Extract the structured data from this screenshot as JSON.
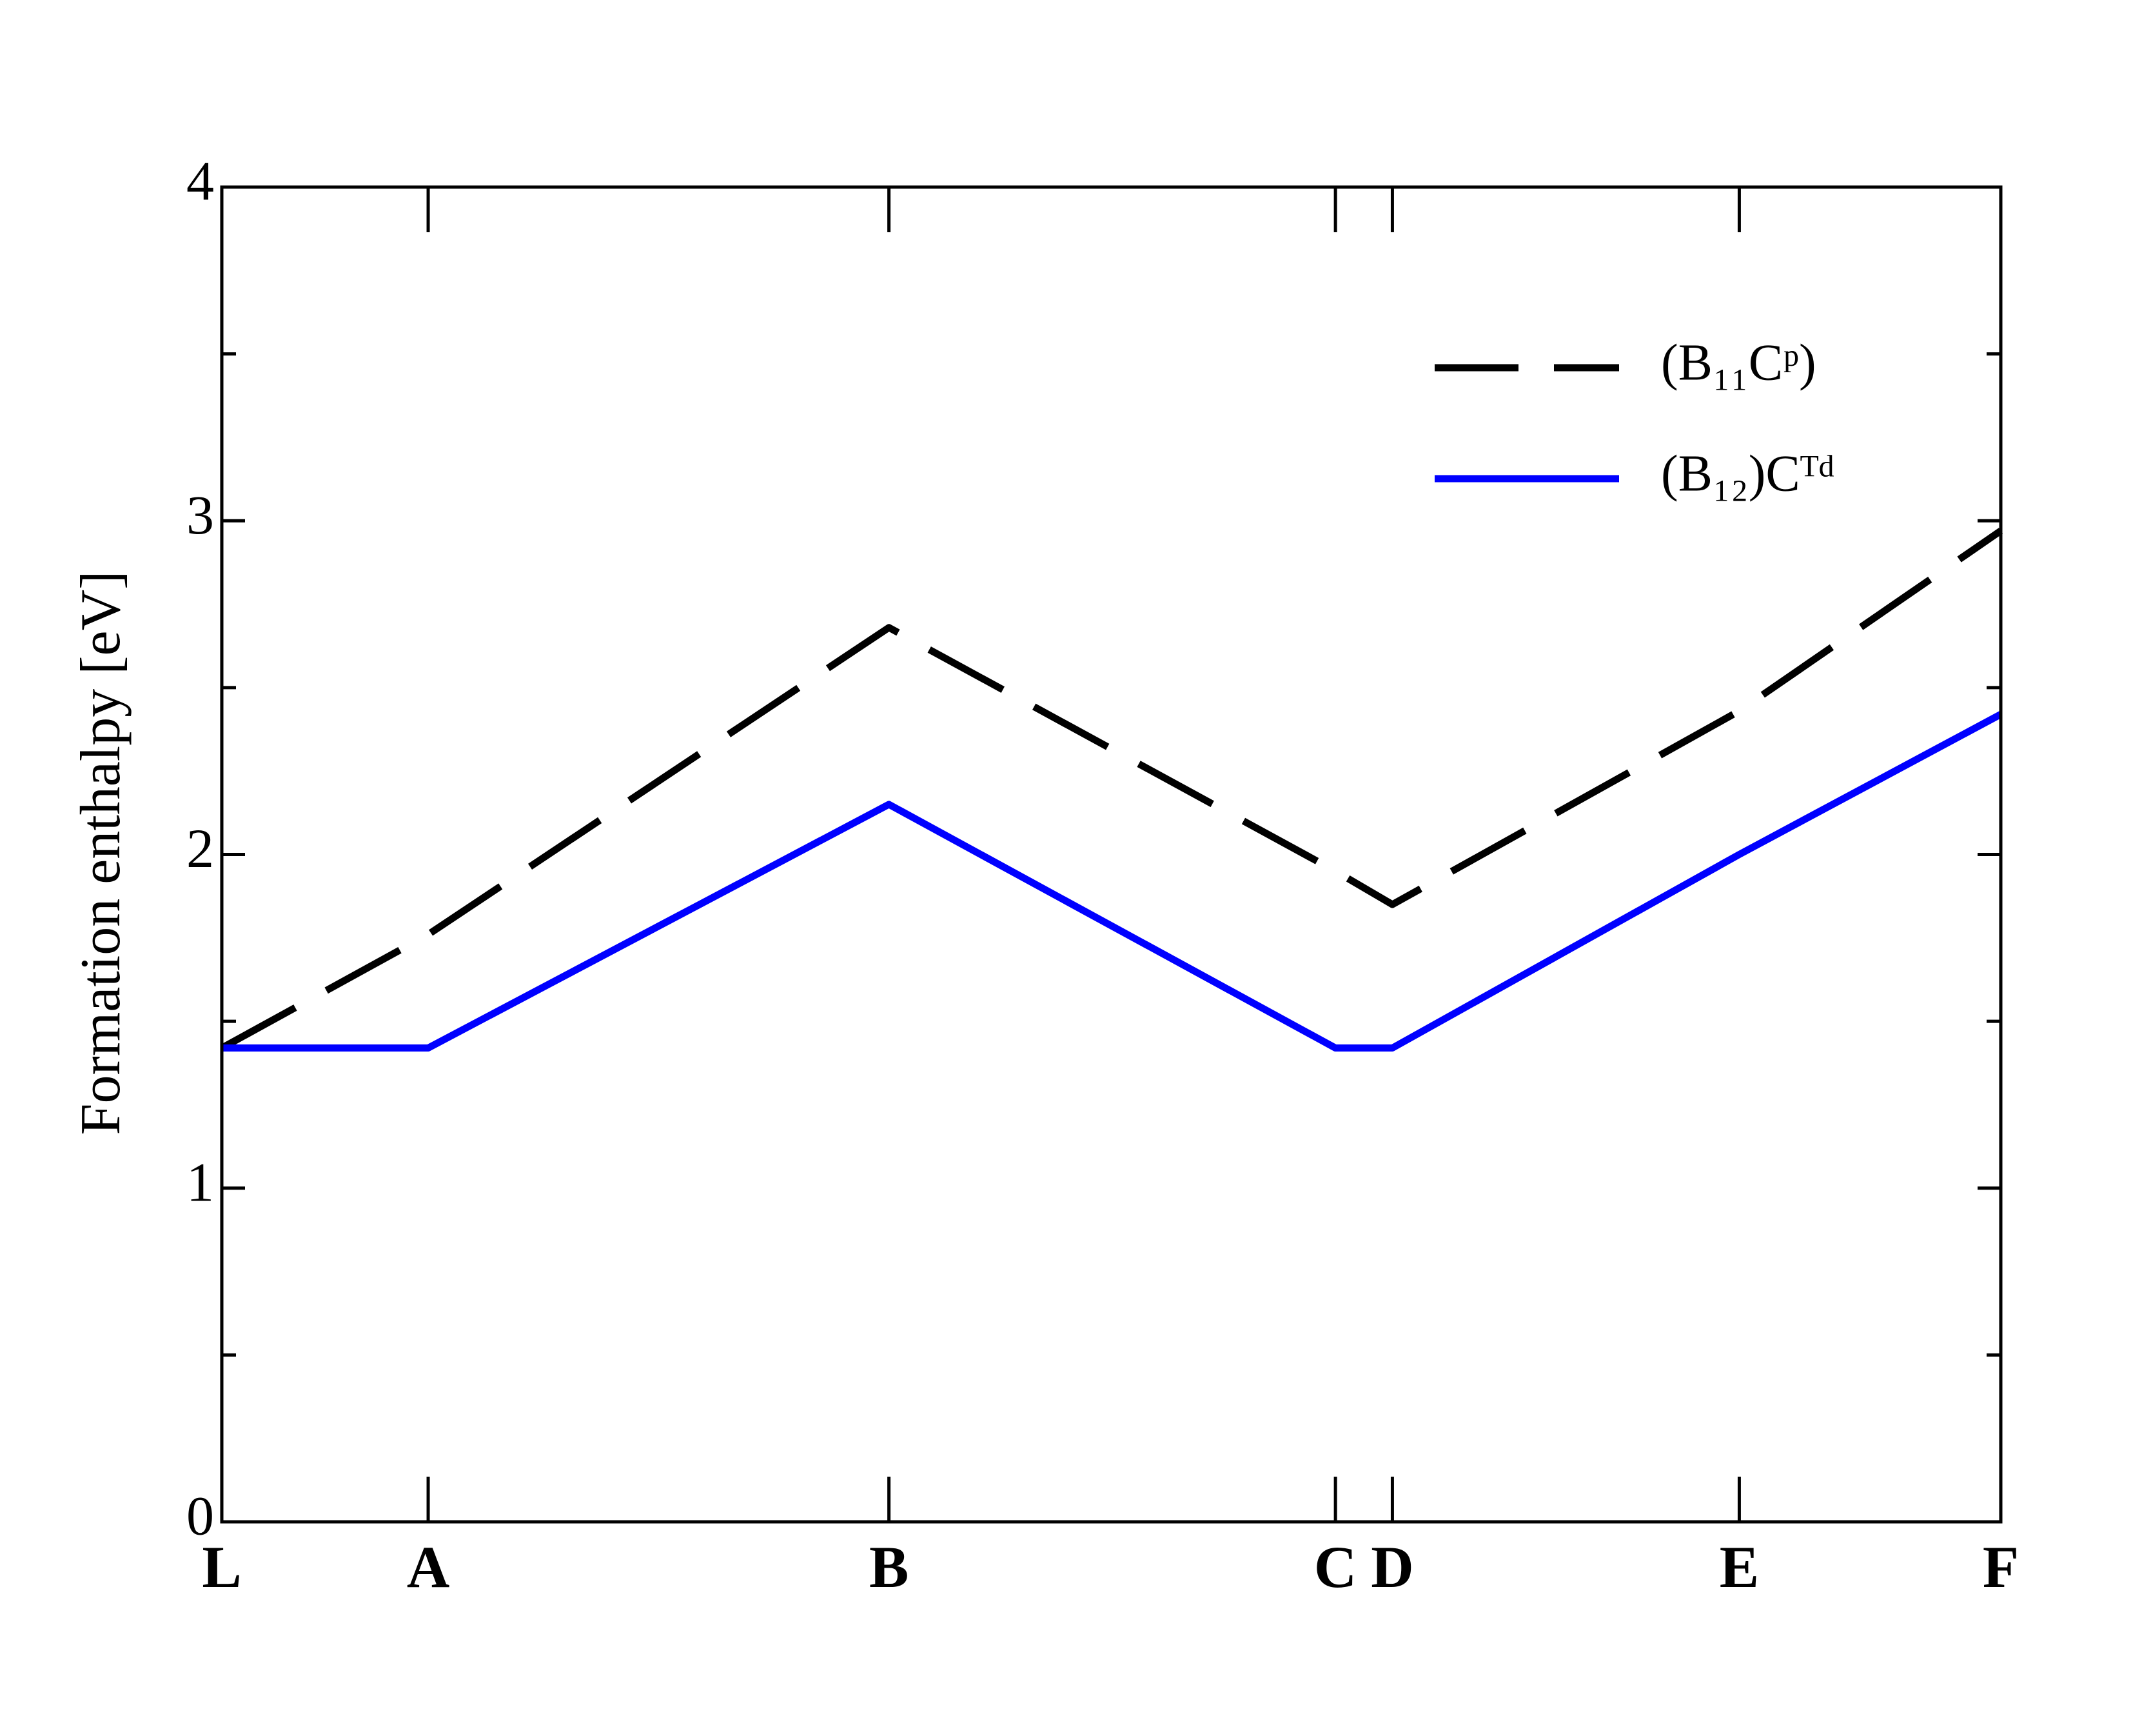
{
  "chart_data": {
    "type": "line",
    "y_label": "Formation enthalpy [eV]",
    "x": [
      0,
      0.116,
      0.375,
      0.626,
      0.658,
      0.853,
      1
    ],
    "xlim": [
      0,
      1
    ],
    "xticks": [
      {
        "value": 0,
        "label": "L"
      },
      {
        "value": 0.116,
        "label": "A"
      },
      {
        "value": 0.375,
        "label": "B"
      },
      {
        "value": 0.626,
        "label": "C"
      },
      {
        "value": 0.658,
        "label": "D"
      },
      {
        "value": 0.853,
        "label": "E"
      },
      {
        "value": 1,
        "label": "F"
      }
    ],
    "ylim": [
      0,
      4
    ],
    "yticks": [
      0,
      1,
      2,
      3,
      4
    ],
    "yminorticks": [
      0.5,
      1.5,
      2.5,
      3.5
    ],
    "legend": "upper right",
    "series": [
      {
        "name": "(B₁₁Cᵖ)",
        "color": "#000000",
        "dashed": true,
        "values": [
          1.42,
          1.76,
          2.68,
          1.95,
          1.85,
          2.43,
          2.97
        ]
      },
      {
        "name": "(B₁₂)Cᵀᵈ",
        "color": "#0000ff",
        "dashed": false,
        "values": [
          1.42,
          1.42,
          2.15,
          1.42,
          1.42,
          2.0,
          2.42
        ]
      }
    ]
  }
}
